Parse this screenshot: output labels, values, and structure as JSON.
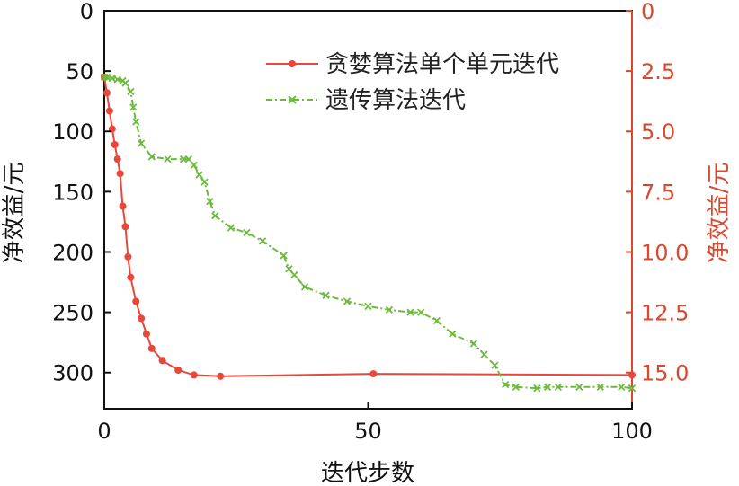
{
  "chart_data": {
    "type": "line",
    "xlabel": "迭代步数",
    "ylabel_left": "净效益/元",
    "ylabel_right": "净效益/元",
    "xlim": [
      0,
      100
    ],
    "ylim_left": [
      0,
      330
    ],
    "ylim_right": [
      0,
      16.5
    ],
    "x_ticks": [
      "0",
      "50",
      "100"
    ],
    "y_ticks_left": [
      "0",
      "50",
      "100",
      "150",
      "200",
      "250",
      "300"
    ],
    "y_ticks_right": [
      "0",
      "2.5",
      "5.0",
      "7.5",
      "10.0",
      "12.5",
      "15.0"
    ],
    "inverted_y": true,
    "grid": false,
    "legend_position": "top-right",
    "colors": {
      "left_axis": "#111111",
      "right_axis": "#d84a2f"
    },
    "series": [
      {
        "name": "贪婪算法单个单元迭代",
        "axis": "left",
        "color": "#e8473a",
        "marker": "circle",
        "x": [
          0,
          0.5,
          1,
          1.5,
          2,
          2.5,
          3,
          3.5,
          4,
          4.5,
          5,
          6,
          7,
          8,
          9,
          11,
          14,
          17,
          22,
          51,
          100
        ],
        "y": [
          55,
          68,
          83,
          98,
          111,
          123,
          135,
          162,
          179,
          204,
          221,
          241,
          255,
          268,
          280,
          290,
          298,
          302,
          303,
          301,
          302
        ]
      },
      {
        "name": "遗传算法迭代",
        "axis": "left",
        "color": "#6cba3c",
        "marker": "x",
        "x": [
          0,
          0.5,
          1.5,
          2.5,
          3.5,
          4,
          5,
          5.5,
          6,
          7,
          9,
          12,
          15,
          16,
          17,
          18,
          19,
          20,
          21,
          24,
          27,
          30,
          34,
          35,
          36,
          38,
          42,
          46,
          50,
          54,
          58,
          60,
          63,
          66,
          70,
          72,
          74,
          76,
          78,
          82,
          84,
          86,
          90,
          94,
          98,
          100
        ],
        "y": [
          55,
          55,
          56,
          57,
          58,
          60,
          67,
          80,
          92,
          110,
          121,
          123,
          123,
          123,
          128,
          136,
          142,
          158,
          170,
          180,
          184,
          191,
          203,
          214,
          219,
          229,
          236,
          241,
          245,
          248,
          250,
          250,
          257,
          268,
          276,
          285,
          294,
          310,
          312,
          313,
          312,
          312,
          312,
          312,
          312,
          313
        ]
      }
    ]
  }
}
